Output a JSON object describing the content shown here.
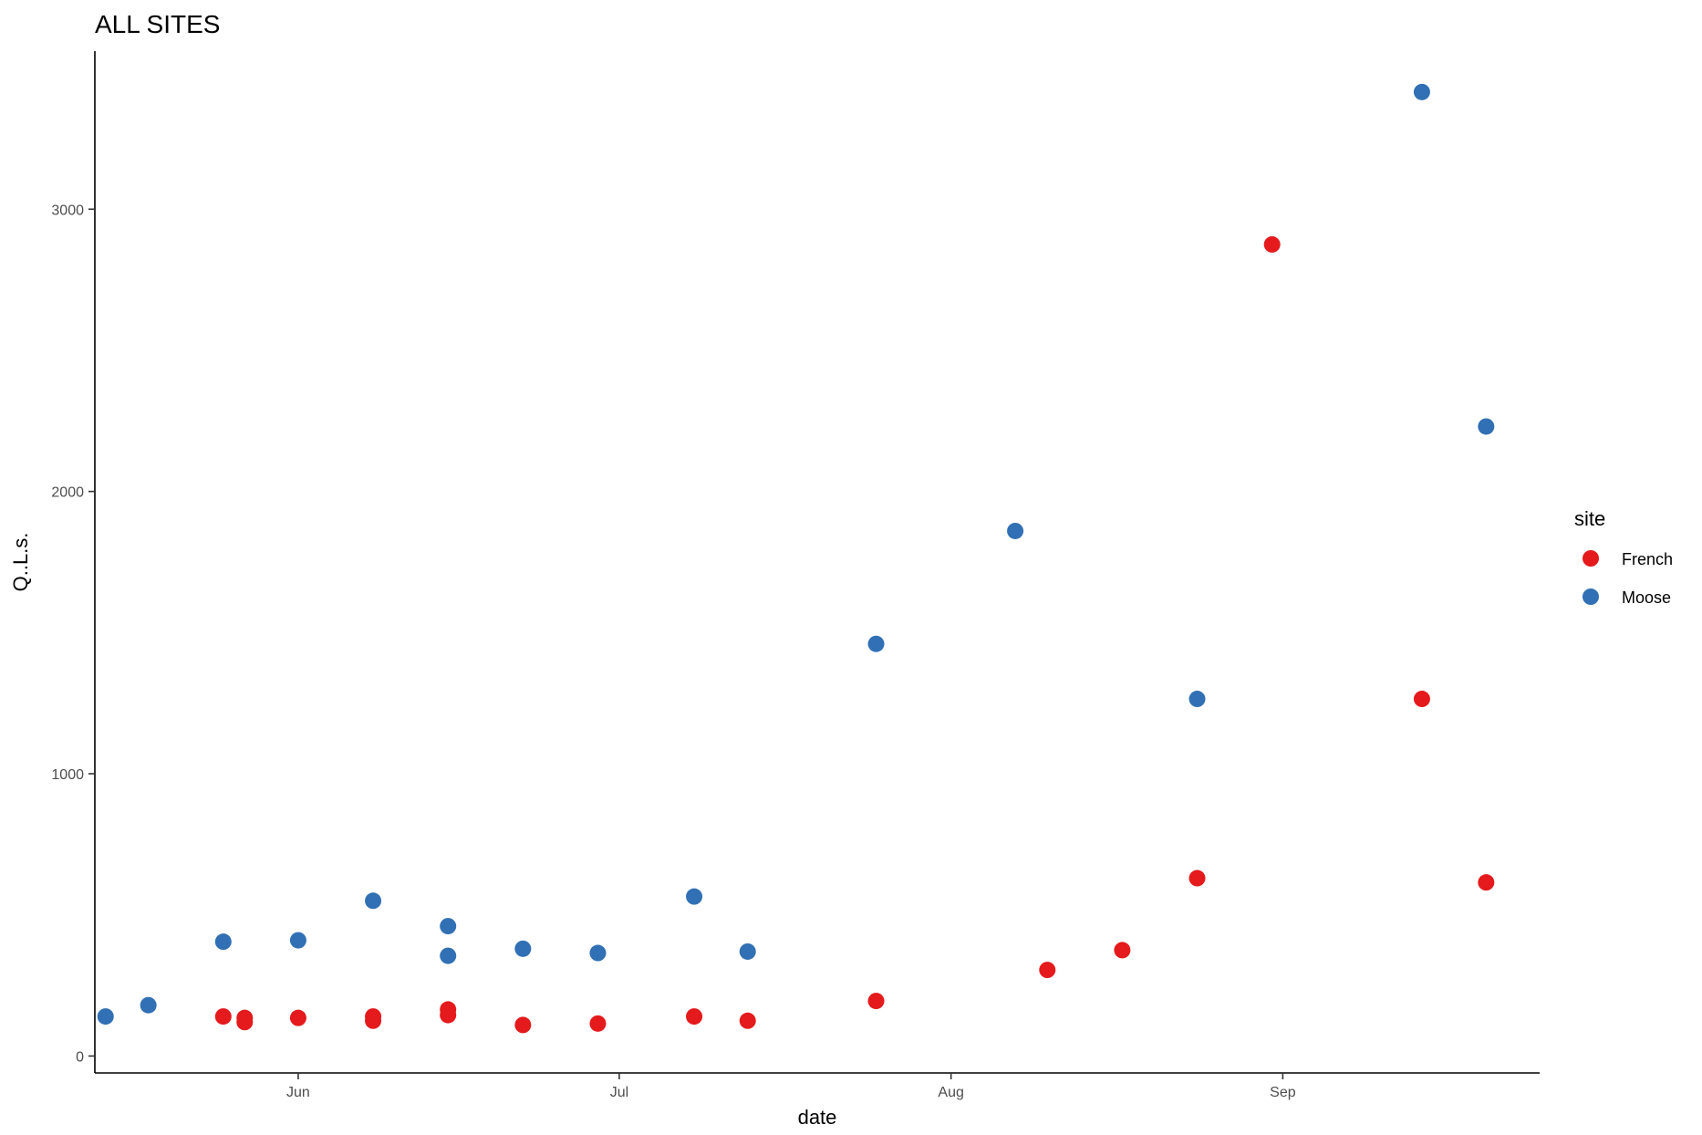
{
  "chart_data": {
    "type": "scatter",
    "title": "ALL SITES",
    "xlabel": "date",
    "ylabel": "Q..L.s.",
    "x_axis_type": "date",
    "xlim": [
      "2024-05-13",
      "2024-09-25"
    ],
    "ylim": [
      -60,
      3560
    ],
    "x_ticks": [
      {
        "date": "2024-06-01",
        "label": "Jun"
      },
      {
        "date": "2024-07-01",
        "label": "Jul"
      },
      {
        "date": "2024-08-01",
        "label": "Aug"
      },
      {
        "date": "2024-09-01",
        "label": "Sep"
      }
    ],
    "y_ticks": [
      0,
      1000,
      2000,
      3000
    ],
    "grid": false,
    "legend": {
      "title": "site",
      "position": "right"
    },
    "series": [
      {
        "name": "French",
        "color": "#e41a1c",
        "points": [
          {
            "x": "2024-05-25",
            "y": 140
          },
          {
            "x": "2024-05-27",
            "y": 135
          },
          {
            "x": "2024-05-27",
            "y": 120
          },
          {
            "x": "2024-06-01",
            "y": 135
          },
          {
            "x": "2024-06-08",
            "y": 140
          },
          {
            "x": "2024-06-08",
            "y": 125
          },
          {
            "x": "2024-06-15",
            "y": 165
          },
          {
            "x": "2024-06-15",
            "y": 145
          },
          {
            "x": "2024-06-22",
            "y": 110
          },
          {
            "x": "2024-06-29",
            "y": 115
          },
          {
            "x": "2024-07-08",
            "y": 140
          },
          {
            "x": "2024-07-13",
            "y": 125
          },
          {
            "x": "2024-07-25",
            "y": 195
          },
          {
            "x": "2024-08-10",
            "y": 305
          },
          {
            "x": "2024-08-17",
            "y": 375
          },
          {
            "x": "2024-08-24",
            "y": 630
          },
          {
            "x": "2024-08-31",
            "y": 2875
          },
          {
            "x": "2024-09-14",
            "y": 1265
          },
          {
            "x": "2024-09-20",
            "y": 615
          }
        ]
      },
      {
        "name": "Moose",
        "color": "#3170b4",
        "points": [
          {
            "x": "2024-05-14",
            "y": 140
          },
          {
            "x": "2024-05-18",
            "y": 180
          },
          {
            "x": "2024-05-25",
            "y": 405
          },
          {
            "x": "2024-06-01",
            "y": 410
          },
          {
            "x": "2024-06-08",
            "y": 550
          },
          {
            "x": "2024-06-15",
            "y": 460
          },
          {
            "x": "2024-06-15",
            "y": 355
          },
          {
            "x": "2024-06-22",
            "y": 380
          },
          {
            "x": "2024-06-29",
            "y": 365
          },
          {
            "x": "2024-07-08",
            "y": 565
          },
          {
            "x": "2024-07-13",
            "y": 370
          },
          {
            "x": "2024-07-25",
            "y": 1460
          },
          {
            "x": "2024-08-07",
            "y": 1860
          },
          {
            "x": "2024-08-24",
            "y": 1265
          },
          {
            "x": "2024-09-14",
            "y": 3415
          },
          {
            "x": "2024-09-20",
            "y": 2230
          }
        ]
      }
    ]
  }
}
